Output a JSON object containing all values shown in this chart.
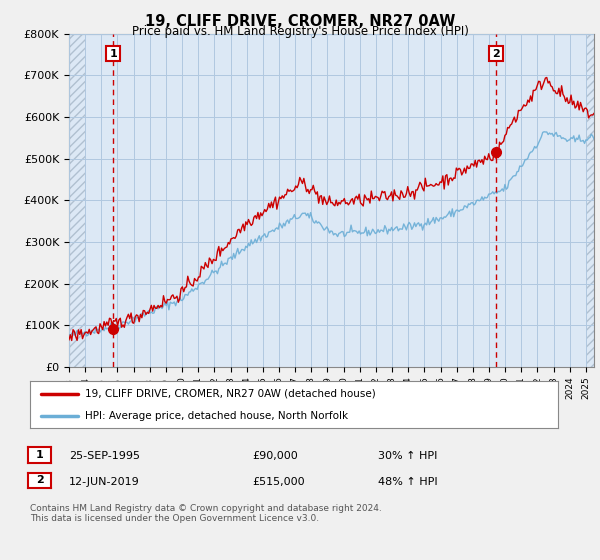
{
  "title": "19, CLIFF DRIVE, CROMER, NR27 0AW",
  "subtitle": "Price paid vs. HM Land Registry's House Price Index (HPI)",
  "legend_line1": "19, CLIFF DRIVE, CROMER, NR27 0AW (detached house)",
  "legend_line2": "HPI: Average price, detached house, North Norfolk",
  "sale1_label": "1",
  "sale1_date": "25-SEP-1995",
  "sale1_price": 90000,
  "sale1_hpi": "30% ↑ HPI",
  "sale1_x": 1995.73,
  "sale2_label": "2",
  "sale2_date": "12-JUN-2019",
  "sale2_price": 515000,
  "sale2_hpi": "48% ↑ HPI",
  "sale2_x": 2019.44,
  "hpi_color": "#6baed6",
  "price_color": "#cc0000",
  "dashed_line_color": "#cc0000",
  "background_color": "#f0f0f0",
  "plot_bg_color": "#dce8f5",
  "grid_color": "#b0c8e0",
  "hatch_color": "#c8d8e8",
  "ylim": [
    0,
    800000
  ],
  "xlim_start": 1993.0,
  "xlim_end": 2025.5,
  "yticks": [
    0,
    100000,
    200000,
    300000,
    400000,
    500000,
    600000,
    700000,
    800000
  ],
  "ytick_labels": [
    "£0",
    "£100K",
    "£200K",
    "£300K",
    "£400K",
    "£500K",
    "£600K",
    "£700K",
    "£800K"
  ],
  "footer": "Contains HM Land Registry data © Crown copyright and database right 2024.\nThis data is licensed under the Open Government Licence v3.0."
}
